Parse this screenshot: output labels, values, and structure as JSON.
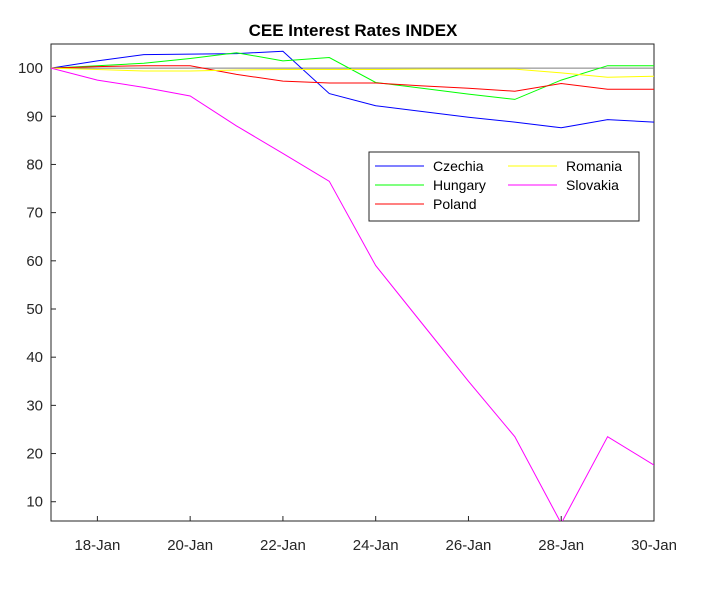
{
  "chart_data": {
    "type": "line",
    "title": "CEE Interest Rates INDEX",
    "xlabel": "",
    "ylabel": "",
    "x": [
      "17-Jan",
      "18-Jan",
      "19-Jan",
      "20-Jan",
      "21-Jan",
      "22-Jan",
      "23-Jan",
      "24-Jan",
      "25-Jan",
      "26-Jan",
      "27-Jan",
      "28-Jan",
      "29-Jan",
      "30-Jan"
    ],
    "x_ticks": [
      "18-Jan",
      "20-Jan",
      "22-Jan",
      "24-Jan",
      "26-Jan",
      "28-Jan",
      "30-Jan"
    ],
    "ylim": [
      6,
      105
    ],
    "y_ticks": [
      10,
      20,
      30,
      40,
      50,
      60,
      70,
      80,
      90,
      100
    ],
    "reference_line": 100,
    "grid": false,
    "legend_position": "top-right (inside)",
    "series": [
      {
        "name": "Czechia",
        "color": "#0000ff",
        "values": [
          100,
          101.5,
          102.8,
          102.9,
          103.0,
          103.5,
          94.7,
          92.2,
          91.0,
          89.8,
          88.8,
          87.6,
          89.3,
          88.8
        ]
      },
      {
        "name": "Hungary",
        "color": "#00ff00",
        "values": [
          100,
          100.5,
          101.0,
          102.0,
          103.2,
          101.5,
          102.2,
          97.0,
          95.8,
          94.6,
          93.5,
          97.5,
          100.5,
          100.5
        ]
      },
      {
        "name": "Poland",
        "color": "#ff0000",
        "values": [
          100,
          100.3,
          100.5,
          100.5,
          98.7,
          97.3,
          96.9,
          96.9,
          96.3,
          95.8,
          95.2,
          96.8,
          95.6,
          95.6
        ]
      },
      {
        "name": "Romania",
        "color": "#ffff00",
        "values": [
          100,
          99.7,
          99.4,
          99.4,
          99.6,
          99.7,
          99.7,
          99.7,
          99.8,
          99.8,
          99.8,
          99.0,
          98.1,
          98.3
        ]
      },
      {
        "name": "Slovakia",
        "color": "#ff00ff",
        "values": [
          100,
          97.5,
          96.0,
          94.2,
          88.0,
          82.3,
          76.5,
          59.0,
          47.0,
          35.0,
          23.5,
          5.5,
          23.5,
          17.6
        ]
      }
    ]
  }
}
